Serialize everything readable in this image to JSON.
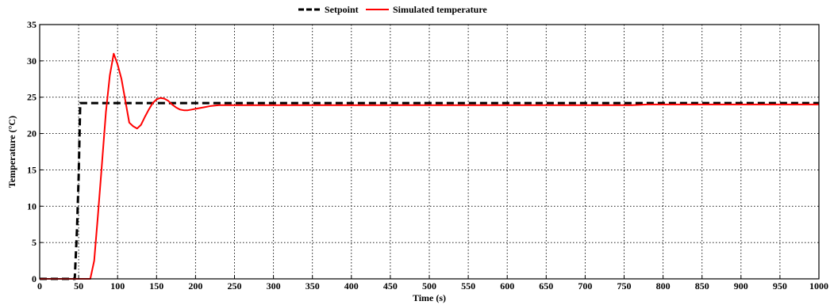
{
  "chart_data": {
    "type": "line",
    "title": "",
    "xlabel": "Time (s)",
    "ylabel": "Temperature (°C)",
    "xlim": [
      0,
      1000
    ],
    "ylim": [
      0,
      35
    ],
    "xticks": [
      0,
      50,
      100,
      150,
      200,
      250,
      300,
      350,
      400,
      450,
      500,
      550,
      600,
      650,
      700,
      750,
      800,
      850,
      900,
      950,
      1000
    ],
    "yticks": [
      0,
      5,
      10,
      15,
      20,
      25,
      30,
      35
    ],
    "grid": true,
    "legend_position": "top-center",
    "series": [
      {
        "name": "Setpoint",
        "color": "#000000",
        "style": "dashed",
        "x": [
          0,
          45,
          48,
          50,
          52,
          1000
        ],
        "y": [
          0,
          0,
          7,
          14,
          24.2,
          24.2
        ]
      },
      {
        "name": "Simulated temperature",
        "color": "#ff0000",
        "style": "solid",
        "x": [
          0,
          65,
          70,
          75,
          80,
          85,
          90,
          95,
          100,
          105,
          110,
          115,
          120,
          125,
          130,
          135,
          140,
          145,
          150,
          155,
          160,
          165,
          170,
          175,
          180,
          185,
          190,
          195,
          200,
          210,
          220,
          230,
          240,
          250,
          300,
          400,
          500,
          600,
          700,
          760,
          780,
          800,
          900,
          1000
        ],
        "y": [
          0,
          0,
          2.5,
          9,
          16,
          23,
          28,
          31,
          29.5,
          27.5,
          24.5,
          21.5,
          21.0,
          20.7,
          21.2,
          22.3,
          23.3,
          24.2,
          24.7,
          24.9,
          24.8,
          24.5,
          24.0,
          23.6,
          23.3,
          23.2,
          23.2,
          23.3,
          23.4,
          23.6,
          23.8,
          23.9,
          23.9,
          23.9,
          23.9,
          23.9,
          23.9,
          23.9,
          23.9,
          23.9,
          24.0,
          24.0,
          24.0,
          24.0
        ]
      }
    ]
  }
}
